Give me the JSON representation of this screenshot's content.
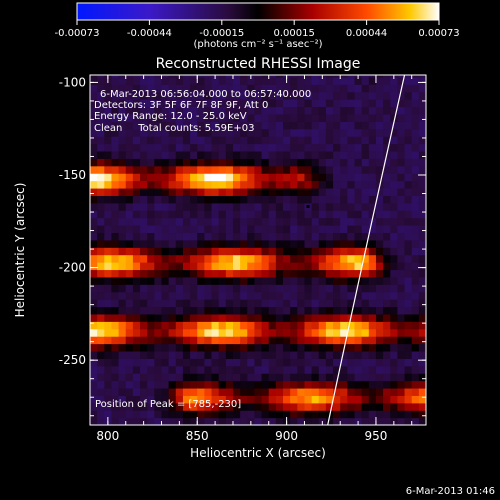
{
  "chart_data": {
    "type": "heatmap",
    "title": "Reconstructed RHESSI Image",
    "xlabel": "Heliocentric X (arcsec)",
    "ylabel": "Heliocentric Y (arcsec)",
    "xlim": [
      790,
      978
    ],
    "ylim": [
      -285,
      -96
    ],
    "x_ticks": [
      800,
      850,
      900,
      950
    ],
    "y_ticks": [
      -100,
      -150,
      -200,
      -250
    ],
    "colorbar": {
      "ticks": [
        "-0.00073",
        "-0.00044",
        "-0.00015",
        "0.00015",
        "0.00044",
        "0.00073"
      ],
      "units": "(photons cm⁻² s⁻¹ asec⁻²)",
      "range": [
        -0.00073,
        0.00073
      ]
    },
    "annotations": [
      "6-Mar-2013 06:56:04.000 to 06:57:40.000",
      "Detectors: 3F 5F 6F 7F 8F 9F, Att 0",
      "Energy Range: 12.0 - 25.0 keV",
      "Clean     Total counts: 5.59E+03"
    ],
    "peak": {
      "label": "Position of Peak = [785,-230]",
      "x": 785,
      "y": -230
    },
    "limb_curve": [
      [
        966,
        -96
      ],
      [
        944,
        -190
      ],
      [
        923,
        -285
      ]
    ],
    "bands": [
      {
        "y": -152,
        "x_start": 790,
        "x_end": 900,
        "value": 0.00068
      },
      {
        "y": -197,
        "x_start": 790,
        "x_end": 940,
        "value": 0.00058
      },
      {
        "y": -234,
        "x_start": 790,
        "x_end": 978,
        "value": 0.00062
      },
      {
        "y": -270,
        "x_start": 850,
        "x_end": 978,
        "value": 0.0005
      }
    ]
  },
  "footer": {
    "timestamp": "6-Mar-2013 01:46"
  }
}
